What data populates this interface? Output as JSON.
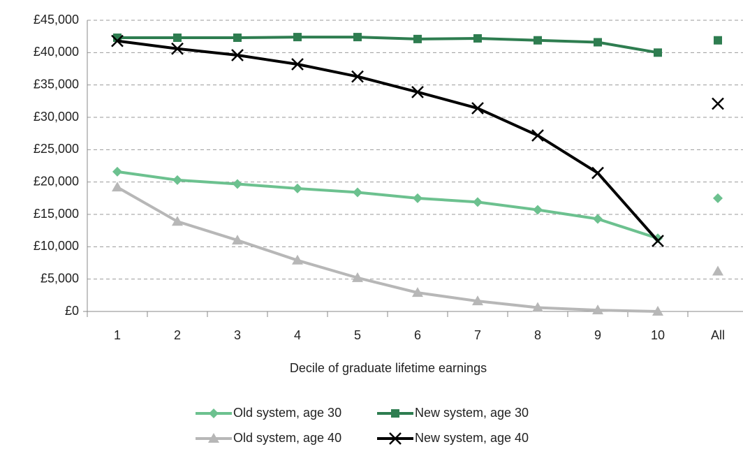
{
  "chart_data": {
    "type": "line",
    "x_label": "Decile of graduate lifetime earnings",
    "categories": [
      "1",
      "2",
      "3",
      "4",
      "5",
      "6",
      "7",
      "8",
      "9",
      "10"
    ],
    "summary_category": "All",
    "series": [
      {
        "name": "Old system, age 30",
        "color": "#6cc18f",
        "marker": "diamond",
        "values": [
          21600,
          20300,
          19700,
          19000,
          18400,
          17500,
          16900,
          15700,
          14300,
          11300
        ],
        "summary_value": 17500
      },
      {
        "name": "New system, age 30",
        "color": "#2e7d50",
        "marker": "square",
        "values": [
          42300,
          42300,
          42300,
          42400,
          42400,
          42100,
          42200,
          41900,
          41600,
          40000
        ],
        "summary_value": 41900
      },
      {
        "name": "Old system, age 40",
        "color": "#b7b7b7",
        "marker": "triangle",
        "values": [
          19200,
          13900,
          11000,
          7900,
          5200,
          2900,
          1600,
          600,
          200,
          0
        ],
        "summary_value": 6200
      },
      {
        "name": "New system, age 40",
        "color": "#000000",
        "marker": "x",
        "values": [
          41800,
          40600,
          39600,
          38200,
          36300,
          33900,
          31400,
          27200,
          21400,
          10900
        ],
        "summary_value": 32100
      }
    ],
    "ylim": [
      0,
      45000
    ],
    "yticks": [
      {
        "value": 0,
        "label": "£0"
      },
      {
        "value": 5000,
        "label": "£5,000"
      },
      {
        "value": 10000,
        "label": "£10,000"
      },
      {
        "value": 15000,
        "label": "£15,000"
      },
      {
        "value": 20000,
        "label": "£20,000"
      },
      {
        "value": 25000,
        "label": "£25,000"
      },
      {
        "value": 30000,
        "label": "£30,000"
      },
      {
        "value": 35000,
        "label": "£35,000"
      },
      {
        "value": 40000,
        "label": "£40,000"
      },
      {
        "value": 45000,
        "label": "£45,000"
      }
    ],
    "grid": true
  }
}
